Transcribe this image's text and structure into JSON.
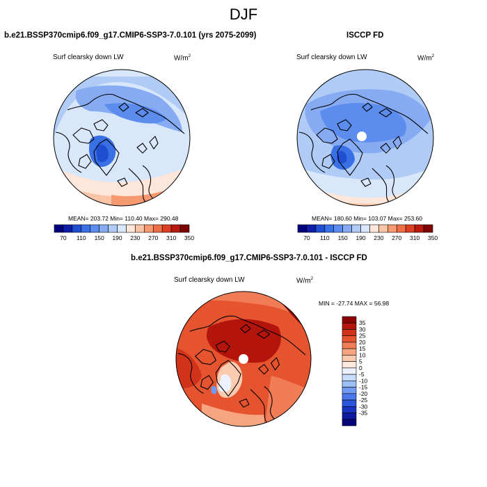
{
  "figure": {
    "title": "DJF",
    "variable": "Surf clearsky down LW",
    "units_base": "W/m",
    "units_exp": "2"
  },
  "colors": {
    "panel_palette": [
      "#00007e",
      "#0d1da8",
      "#1f4fd0",
      "#3a70e6",
      "#5c8dee",
      "#86abf2",
      "#b0ccf6",
      "#d9e7fb",
      "#fde6da",
      "#fac4a6",
      "#f59a70",
      "#ee6e47",
      "#dc3f23",
      "#b8190f",
      "#7e0303"
    ],
    "diff_palette": [
      "#07057a",
      "#0b1aa0",
      "#1633c2",
      "#2a55dc",
      "#4978ec",
      "#719bf3",
      "#9cbff8",
      "#c8dcfb",
      "#ecf2fd",
      "#fde9dd",
      "#facbaf",
      "#f6a580",
      "#f07d56",
      "#e5532f",
      "#d0321a",
      "#b3150c",
      "#8a0404"
    ]
  },
  "panels": {
    "model": {
      "title": "b.e21.BSSP370cmip6.f09_g17.CMIP6-SSP3-7.0.101 (yrs 2075-2099)",
      "mean": "203.72",
      "min": "110.40",
      "max": "290.48",
      "stats_text": "MEAN= 203.72  Min= 110.40  Max= 290.48"
    },
    "obs": {
      "title": "ISCCP FD",
      "mean": "180.60",
      "min": "103.07",
      "max": "253.60",
      "stats_text": "MEAN= 180.60  Min= 103.07  Max= 253.60"
    },
    "diff": {
      "title": "b.e21.BSSP370cmip6.f09_g17.CMIP6-SSP3-7.0.101 - ISCCP FD",
      "min": "-27.74",
      "max": "56.98",
      "stats_text": "MIN = -27.74 MAX =  56.98"
    }
  },
  "chart_data": [
    {
      "type": "heatmap",
      "projection": "north polar stereographic",
      "title": "b.e21.BSSP370cmip6.f09_g17.CMIP6-SSP3-7.0.101 (yrs 2075-2099)",
      "field": "Surf clearsky down LW",
      "units": "W/m2",
      "stats": {
        "mean": 203.72,
        "min": 110.4,
        "max": 290.48
      },
      "colorbar_levels": [
        70,
        90,
        110,
        130,
        150,
        170,
        190,
        210,
        230,
        250,
        270,
        290,
        310,
        330,
        350
      ],
      "colorbar_tick_labels": [
        "70",
        "110",
        "150",
        "190",
        "230",
        "270",
        "310",
        "350"
      ],
      "colorbar_orientation": "horizontal"
    },
    {
      "type": "heatmap",
      "projection": "north polar stereographic",
      "title": "ISCCP FD",
      "field": "Surf clearsky down LW",
      "units": "W/m2",
      "stats": {
        "mean": 180.6,
        "min": 103.07,
        "max": 253.6
      },
      "colorbar_levels": [
        70,
        90,
        110,
        130,
        150,
        170,
        190,
        210,
        230,
        250,
        270,
        290,
        310,
        330,
        350
      ],
      "colorbar_tick_labels": [
        "70",
        "110",
        "150",
        "190",
        "230",
        "270",
        "310",
        "350"
      ],
      "colorbar_orientation": "horizontal"
    },
    {
      "type": "heatmap",
      "projection": "north polar stereographic",
      "title": "b.e21.BSSP370cmip6.f09_g17.CMIP6-SSP3-7.0.101 - ISCCP FD",
      "field": "Surf clearsky down LW",
      "units": "W/m2",
      "stats": {
        "min": -27.74,
        "max": 56.98
      },
      "colorbar_levels": [
        -35,
        -30,
        -25,
        -20,
        -15,
        -10,
        -5,
        0,
        5,
        10,
        15,
        20,
        25,
        30,
        35
      ],
      "colorbar_tick_labels": [
        "35",
        "30",
        "25",
        "20",
        "15",
        "10",
        "5",
        "0",
        "-5",
        "-10",
        "-15",
        "-20",
        "-25",
        "-30",
        "-35"
      ],
      "colorbar_orientation": "vertical"
    }
  ]
}
